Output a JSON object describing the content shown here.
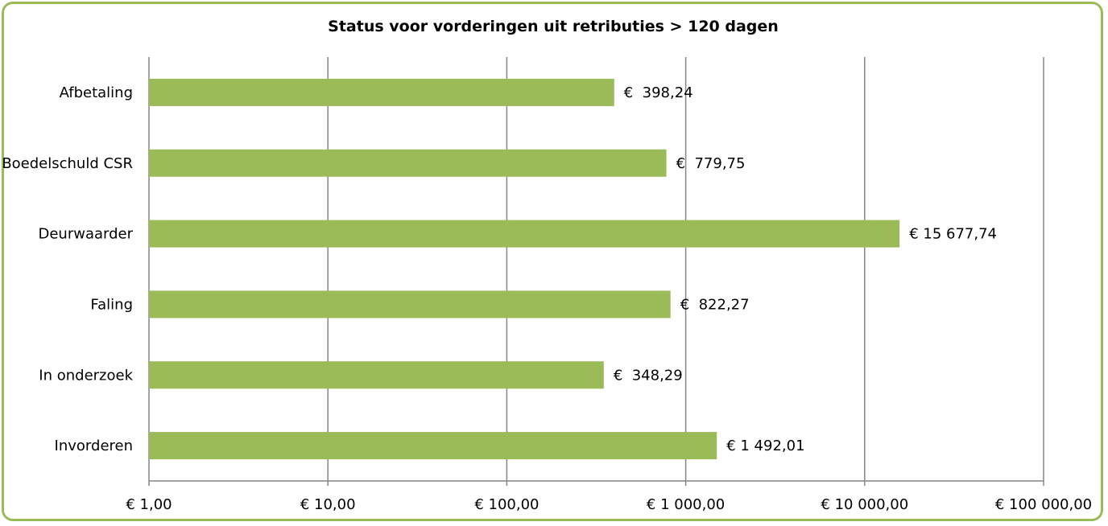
{
  "chart_data": {
    "type": "bar",
    "orientation": "horizontal",
    "title": "Status voor vorderingen uit retributies > 120 dagen",
    "xlabel": "",
    "ylabel": "",
    "x_scale": "log",
    "xlim": [
      1,
      100000
    ],
    "grid": true,
    "legend": "none",
    "bar_color": "#9BBB59",
    "border_color": "#9BBB59",
    "categories": [
      "Afbetaling",
      "Boedelschuld CSR",
      "Deurwaarder",
      "Faling",
      "In onderzoek",
      "Invorderen"
    ],
    "values": [
      398.24,
      779.75,
      15677.74,
      822.27,
      348.29,
      1492.01
    ],
    "data_labels": [
      "€  398,24",
      "€  779,75",
      "€ 15 677,74",
      "€  822,27",
      "€  348,29",
      "€ 1 492,01"
    ],
    "tick_values": [
      1,
      10,
      100,
      1000,
      10000,
      100000
    ],
    "tick_labels": [
      "€  1,00",
      "€  10,00",
      "€  100,00",
      "€ 1 000,00",
      "€ 10 000,00",
      "€ 100 000,00"
    ]
  }
}
